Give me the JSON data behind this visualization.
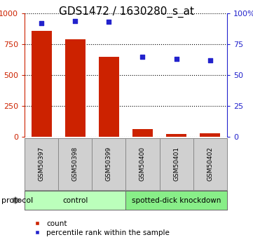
{
  "title": "GDS1472 / 1630280_s_at",
  "samples": [
    "GSM50397",
    "GSM50398",
    "GSM50399",
    "GSM50400",
    "GSM50401",
    "GSM50402"
  ],
  "counts": [
    860,
    790,
    650,
    60,
    25,
    30
  ],
  "percentiles": [
    92,
    94,
    93,
    65,
    63,
    62
  ],
  "bar_color": "#cc2200",
  "dot_color": "#2222cc",
  "ylim_left": [
    0,
    1000
  ],
  "ylim_right": [
    0,
    100
  ],
  "yticks_left": [
    0,
    250,
    500,
    750,
    1000
  ],
  "yticks_right": [
    0,
    25,
    50,
    75,
    100
  ],
  "ytick_labels_right": [
    "0",
    "25",
    "50",
    "75",
    "100%"
  ],
  "groups": [
    {
      "label": "control",
      "start": 0,
      "end": 3,
      "color": "#bbffbb"
    },
    {
      "label": "spotted-dick knockdown",
      "start": 3,
      "end": 6,
      "color": "#88ee88"
    }
  ],
  "protocol_label": "protocol",
  "legend_count_label": "count",
  "legend_pct_label": "percentile rank within the sample",
  "background_color": "#ffffff",
  "plot_bg_color": "#ffffff",
  "title_fontsize": 11,
  "bar_width": 0.6
}
